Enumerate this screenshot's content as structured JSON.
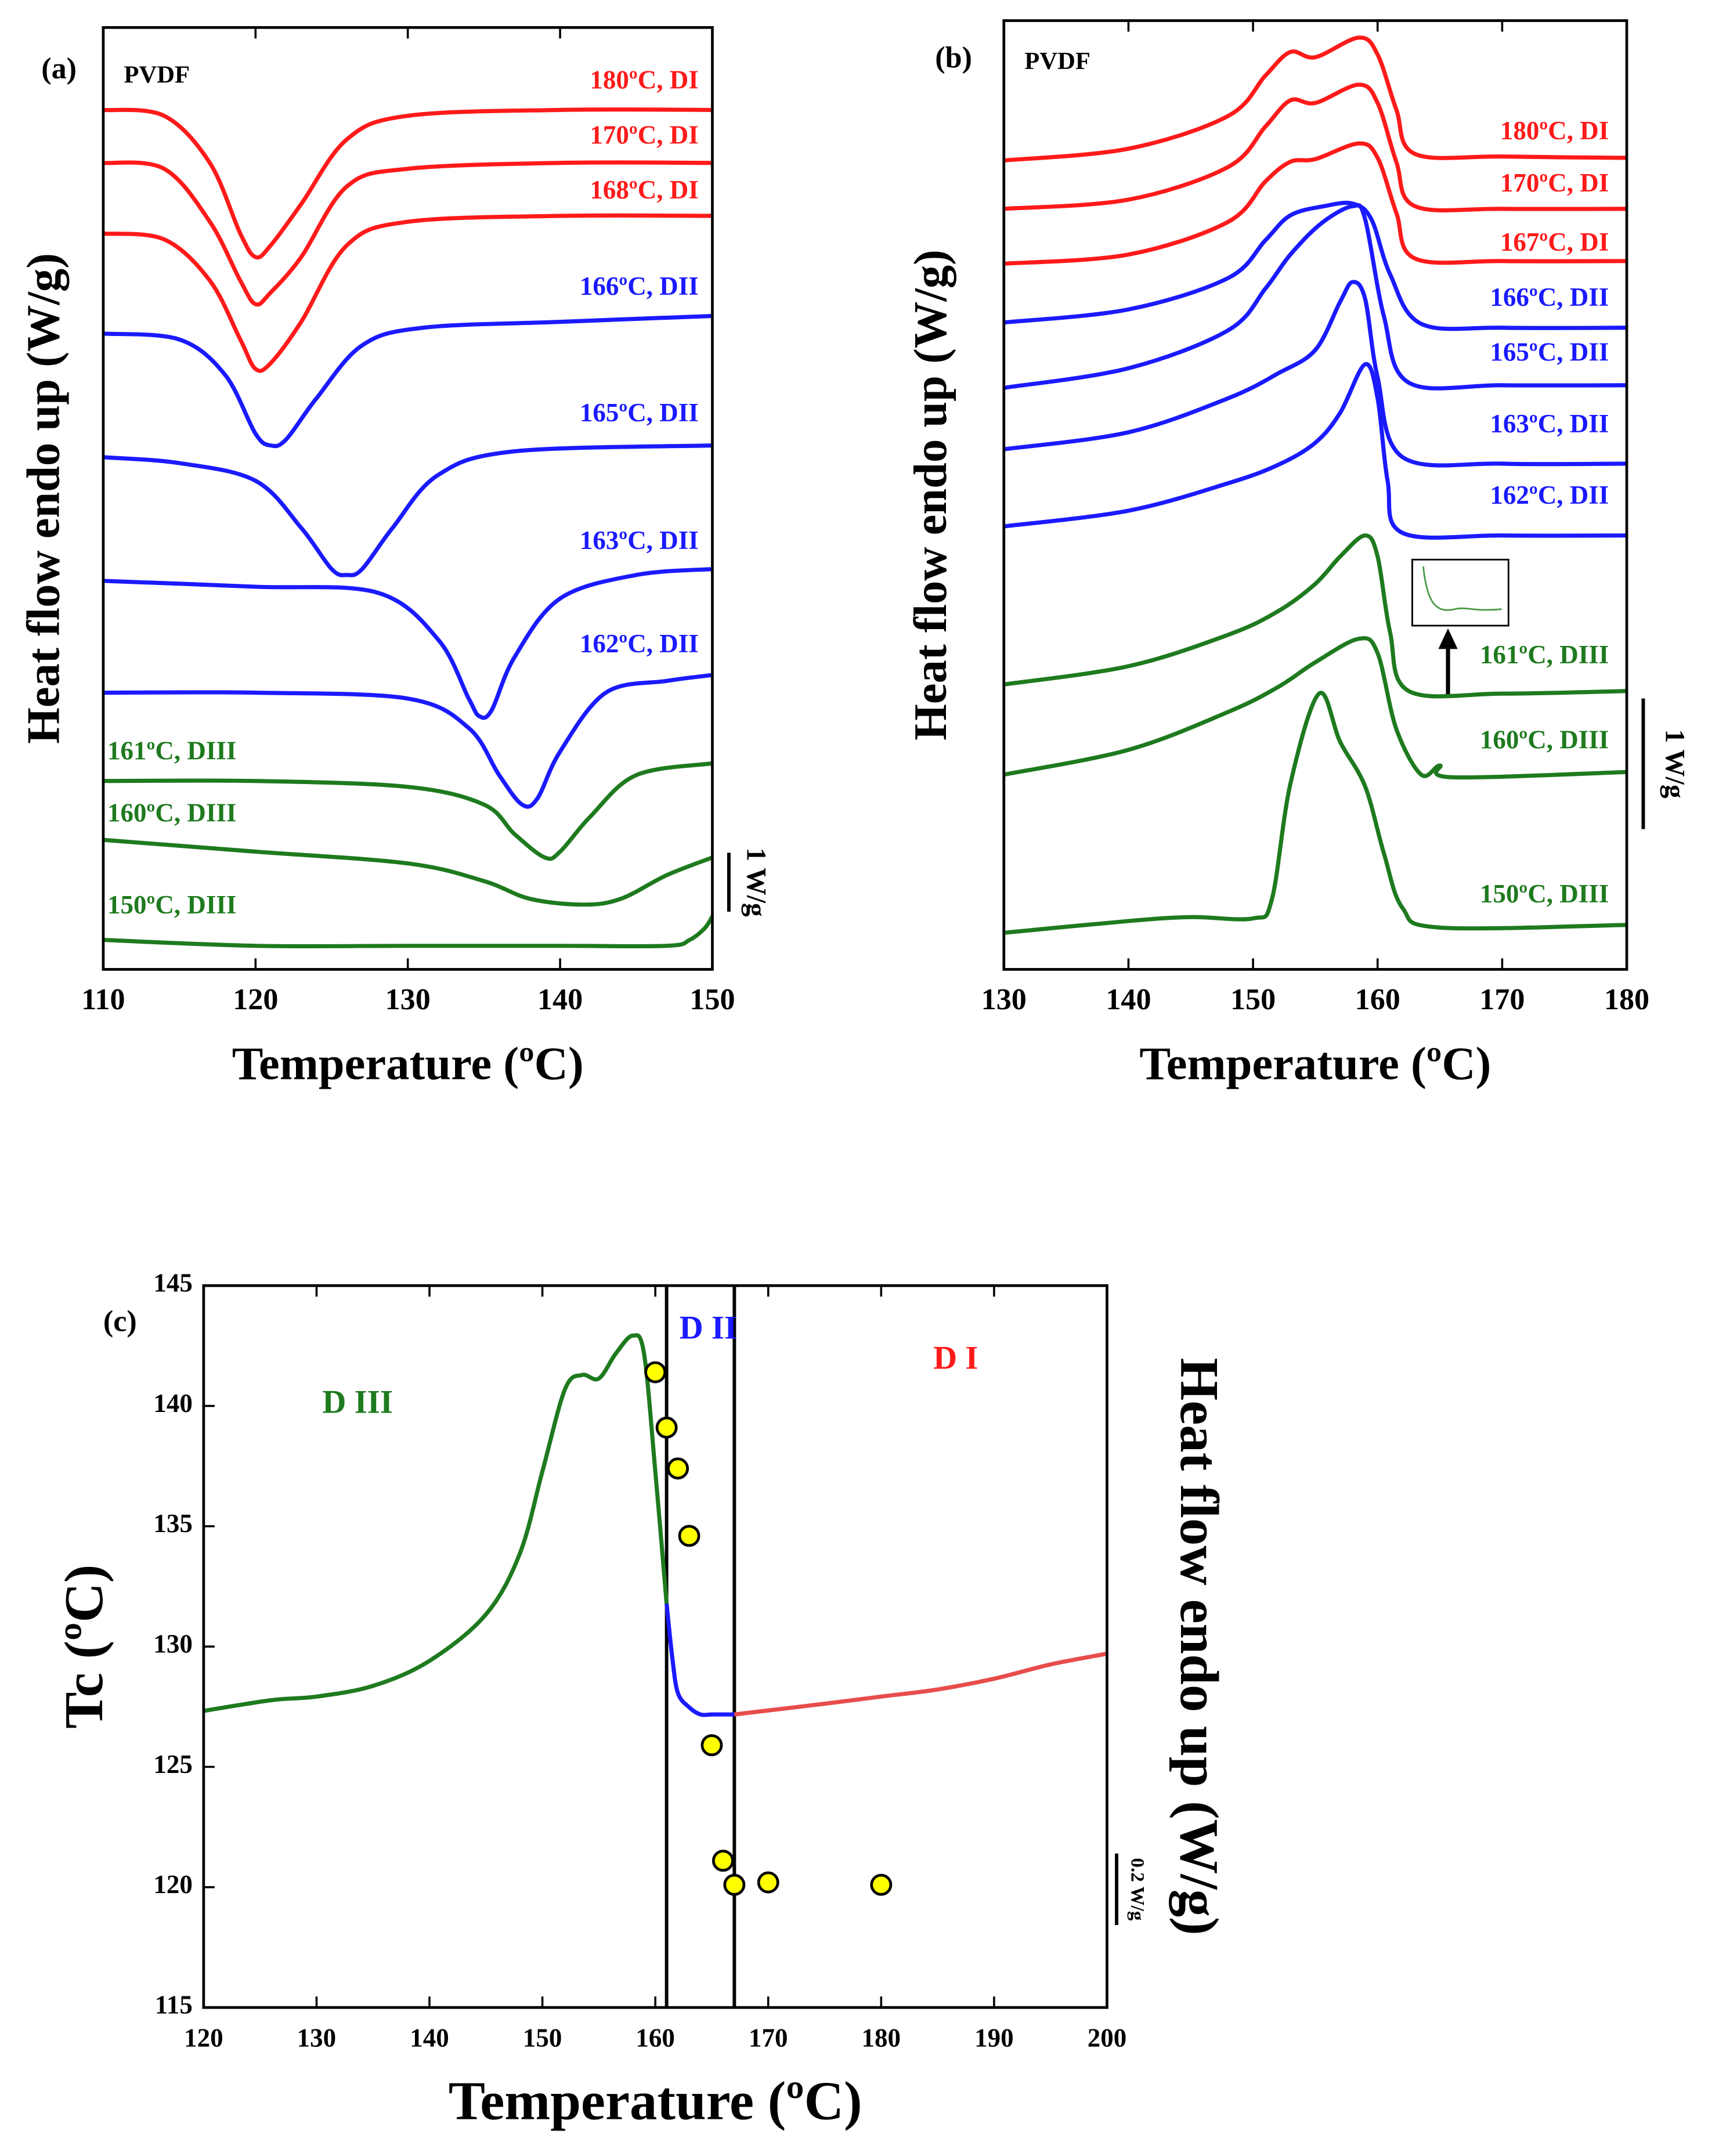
{
  "chart_data": [
    {
      "type": "line",
      "panel": "(a)",
      "sample": "PVDF",
      "x_label": "Temperature (ºC)",
      "y_label": "Heat flow endo up (W/g)",
      "xlim": [
        110,
        150
      ],
      "xticks": [
        110,
        120,
        130,
        140,
        150
      ],
      "ylim": [
        0,
        16
      ],
      "scale_bar": {
        "value": 1,
        "label": "1 W/g"
      },
      "series": [
        {
          "name": "180ºC, DI",
          "color": "#ff1a1a",
          "x": [
            110,
            114,
            117,
            119,
            120,
            121,
            123,
            126,
            130,
            140,
            150
          ],
          "values": [
            14.6,
            14.5,
            13.7,
            12.5,
            12.1,
            12.3,
            13.0,
            14.1,
            14.5,
            14.6,
            14.6
          ]
        },
        {
          "name": "170ºC, DI",
          "color": "#ff1a1a",
          "x": [
            110,
            114,
            117,
            119,
            120,
            121,
            123,
            126,
            130,
            140,
            150
          ],
          "values": [
            13.7,
            13.6,
            12.7,
            11.7,
            11.3,
            11.5,
            12.1,
            13.3,
            13.6,
            13.7,
            13.7
          ]
        },
        {
          "name": "168ºC, DI",
          "color": "#ff1a1a",
          "x": [
            110,
            114,
            117,
            119,
            120,
            121,
            123,
            126,
            130,
            140,
            150
          ],
          "values": [
            12.5,
            12.4,
            11.7,
            10.7,
            10.2,
            10.3,
            11.0,
            12.3,
            12.7,
            12.8,
            12.8
          ]
        },
        {
          "name": "166ºC, DII",
          "color": "#1a1aff",
          "x": [
            110,
            115,
            118,
            120,
            121,
            122,
            124,
            127,
            131,
            140,
            150
          ],
          "values": [
            10.8,
            10.7,
            10.1,
            9.1,
            8.9,
            9.0,
            9.7,
            10.6,
            10.9,
            11.0,
            11.1
          ]
        },
        {
          "name": "165ºC, DII",
          "color": "#1a1aff",
          "x": [
            110,
            115,
            120,
            123,
            125,
            126,
            127,
            129,
            132,
            137,
            150
          ],
          "values": [
            8.7,
            8.6,
            8.3,
            7.5,
            6.8,
            6.7,
            6.8,
            7.5,
            8.4,
            8.8,
            8.9
          ]
        },
        {
          "name": "163ºC, DII",
          "color": "#1a1aff",
          "x": [
            110,
            120,
            128,
            132,
            134,
            134.7,
            135.5,
            137,
            140,
            145,
            150
          ],
          "values": [
            6.6,
            6.5,
            6.4,
            5.6,
            4.6,
            4.3,
            4.4,
            5.3,
            6.3,
            6.7,
            6.8
          ]
        },
        {
          "name": "162ºC, DII",
          "color": "#1a1aff",
          "x": [
            110,
            120,
            130,
            134,
            136,
            137.5,
            138.5,
            140,
            143,
            147,
            150
          ],
          "values": [
            4.7,
            4.7,
            4.6,
            4.1,
            3.3,
            2.8,
            2.9,
            3.7,
            4.7,
            4.9,
            5.0
          ]
        },
        {
          "name": "161ºC, DIII",
          "color": "#1e7a1e",
          "x": [
            110,
            120,
            130,
            135,
            137,
            139,
            140,
            142,
            145,
            150
          ],
          "values": [
            3.2,
            3.2,
            3.1,
            2.8,
            2.3,
            1.9,
            2.0,
            2.6,
            3.3,
            3.5
          ]
        },
        {
          "name": "160ºC, DIII",
          "color": "#1e7a1e",
          "x": [
            110,
            120,
            130,
            135,
            138,
            141.5,
            144,
            147,
            150
          ],
          "values": [
            2.2,
            2.0,
            1.8,
            1.5,
            1.2,
            1.1,
            1.2,
            1.6,
            1.9
          ]
        },
        {
          "name": "150ºC, DIII",
          "color": "#1e7a1e",
          "x": [
            110,
            120,
            130,
            140,
            147,
            148.5,
            149.5,
            150
          ],
          "values": [
            0.5,
            0.4,
            0.4,
            0.4,
            0.4,
            0.5,
            0.7,
            0.9
          ]
        }
      ]
    },
    {
      "type": "line",
      "panel": "(b)",
      "sample": "PVDF",
      "x_label": "Temperature (ºC)",
      "y_label": "Heat flow endo up (W/g)",
      "xlim": [
        130,
        180
      ],
      "xticks": [
        130,
        140,
        150,
        160,
        170,
        180
      ],
      "ylim": [
        0,
        7.26
      ],
      "scale_bar": {
        "value": 1,
        "label": "1 W/g"
      },
      "series": [
        {
          "name": "180ºC, DI",
          "color": "#ff1a1a",
          "x": [
            130,
            140,
            148,
            151,
            153,
            155,
            158.5,
            160,
            161.5,
            163,
            170,
            180
          ],
          "values": [
            6.19,
            6.28,
            6.53,
            6.84,
            7.02,
            6.98,
            7.13,
            7.0,
            6.58,
            6.24,
            6.22,
            6.21
          ]
        },
        {
          "name": "170ºC, DI",
          "color": "#ff1a1a",
          "x": [
            130,
            140,
            148,
            151,
            153,
            155,
            158.5,
            160,
            161.5,
            163,
            170,
            180
          ],
          "values": [
            5.82,
            5.89,
            6.14,
            6.45,
            6.65,
            6.63,
            6.77,
            6.63,
            6.18,
            5.84,
            5.82,
            5.82
          ]
        },
        {
          "name": "167ºC, DI",
          "color": "#ff1a1a",
          "x": [
            130,
            140,
            148,
            151,
            153,
            155,
            158.5,
            160,
            161.5,
            163,
            170,
            180
          ],
          "values": [
            5.4,
            5.47,
            5.72,
            6.03,
            6.18,
            6.2,
            6.32,
            6.21,
            5.79,
            5.44,
            5.42,
            5.42
          ]
        },
        {
          "name": "166ºC, DII",
          "color": "#1a1aff",
          "x": [
            130,
            140,
            148,
            151,
            153,
            155.7,
            158,
            159.5,
            161,
            163.5,
            170,
            180
          ],
          "values": [
            4.95,
            5.05,
            5.29,
            5.58,
            5.77,
            5.84,
            5.86,
            5.74,
            5.32,
            4.94,
            4.91,
            4.91
          ]
        },
        {
          "name": "165ºC, DII",
          "color": "#1a1aff",
          "x": [
            130,
            140,
            148,
            151,
            153,
            155.5,
            158,
            159,
            160.5,
            162.5,
            170,
            180
          ],
          "values": [
            4.45,
            4.6,
            4.89,
            5.21,
            5.47,
            5.71,
            5.84,
            5.74,
            5.0,
            4.49,
            4.47,
            4.47
          ]
        },
        {
          "name": "163ºC, DII",
          "color": "#1a1aff",
          "x": [
            130,
            140,
            148,
            152,
            155,
            157,
            158,
            159,
            160,
            162,
            170,
            180
          ],
          "values": [
            3.98,
            4.11,
            4.37,
            4.56,
            4.74,
            5.11,
            5.26,
            5.13,
            4.53,
            3.92,
            3.87,
            3.87
          ]
        },
        {
          "name": "162ºC, DII",
          "color": "#1a1aff",
          "x": [
            130,
            140,
            148,
            152,
            155,
            157,
            159,
            160,
            160.8,
            162,
            170,
            180
          ],
          "values": [
            3.39,
            3.51,
            3.72,
            3.86,
            4.03,
            4.26,
            4.63,
            4.37,
            3.74,
            3.34,
            3.32,
            3.32
          ]
        },
        {
          "name": "161ºC, DIII",
          "color": "#1e7a1e",
          "x": [
            130,
            140,
            148,
            152,
            155,
            157,
            159,
            160,
            161,
            162.5,
            170,
            180
          ],
          "values": [
            2.18,
            2.32,
            2.56,
            2.74,
            2.95,
            3.16,
            3.32,
            3.16,
            2.58,
            2.13,
            2.11,
            2.13
          ]
        },
        {
          "name": "160ºC, DIII",
          "color": "#1e7a1e",
          "x": [
            130,
            140,
            148,
            152,
            155,
            158.5,
            160,
            161.5,
            163.5,
            165,
            166,
            180
          ],
          "values": [
            1.49,
            1.68,
            1.97,
            2.16,
            2.35,
            2.53,
            2.42,
            1.84,
            1.49,
            1.56,
            1.47,
            1.51
          ]
        },
        {
          "name": "150ºC, DIII",
          "color": "#1e7a1e",
          "x": [
            130,
            140,
            145,
            150,
            151.5,
            153,
            155.3,
            157,
            159,
            160.5,
            162,
            165,
            180
          ],
          "values": [
            0.28,
            0.37,
            0.4,
            0.39,
            0.53,
            1.42,
            2.11,
            1.74,
            1.4,
            0.89,
            0.47,
            0.32,
            0.34
          ]
        }
      ]
    },
    {
      "type": "combo",
      "panel": "(c)",
      "x_label": "Temperature (ºC)",
      "y_label": "Tc (ºC)",
      "y2_label": "Heat flow endo up (W/g)",
      "xlim": [
        120,
        200
      ],
      "xticks": [
        120,
        130,
        140,
        150,
        160,
        170,
        180,
        190,
        200
      ],
      "ylim": [
        115,
        145
      ],
      "yticks": [
        115,
        120,
        125,
        130,
        135,
        140,
        145
      ],
      "y2lim": [
        0,
        2.02
      ],
      "scale_bar": {
        "value": 0.2,
        "label": "0.2 W/g"
      },
      "vlines": [
        161,
        167
      ],
      "annotations": [
        {
          "text": "D III",
          "color": "#1e7a1e"
        },
        {
          "text": "D II",
          "color": "#1a1aff"
        },
        {
          "text": "D I",
          "color": "#ff1a1a"
        }
      ],
      "series": [
        {
          "type": "line",
          "axis": "y2",
          "color": "#1e7a1e",
          "x": [
            120,
            126,
            130,
            135,
            140,
            145,
            148,
            150,
            152,
            153.5,
            155,
            156.5,
            158,
            159,
            160,
            161
          ],
          "values": [
            0.83,
            0.86,
            0.87,
            0.9,
            0.97,
            1.1,
            1.27,
            1.5,
            1.73,
            1.77,
            1.76,
            1.83,
            1.88,
            1.83,
            1.5,
            1.13
          ]
        },
        {
          "type": "line",
          "axis": "y2",
          "color": "#1a1aff",
          "x": [
            161,
            161.5,
            162,
            163,
            164,
            165,
            166,
            167
          ],
          "values": [
            1.13,
            0.98,
            0.88,
            0.84,
            0.82,
            0.82,
            0.82,
            0.82
          ]
        },
        {
          "type": "line",
          "axis": "y2",
          "color": "#e84c4c",
          "x": [
            167,
            175,
            180,
            185,
            190,
            195,
            200
          ],
          "values": [
            0.82,
            0.85,
            0.87,
            0.89,
            0.92,
            0.96,
            0.99
          ]
        },
        {
          "type": "scatter",
          "color": "#ffff00",
          "x": [
            160,
            161,
            162,
            163,
            165,
            166,
            167,
            170,
            180
          ],
          "values": [
            141.4,
            139.1,
            137.4,
            134.6,
            125.9,
            121.1,
            120.1,
            120.2,
            120.1
          ]
        }
      ]
    }
  ]
}
